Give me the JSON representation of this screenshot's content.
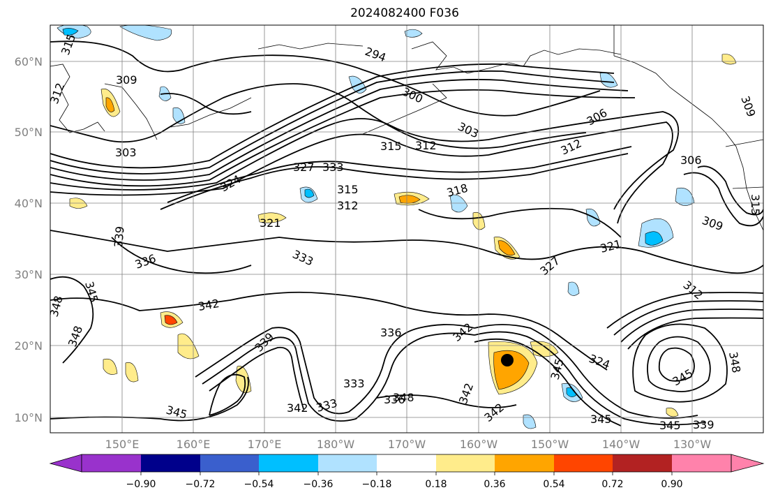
{
  "title": "2024082400 F036",
  "axes": {
    "lat_ticks": [
      "60°N",
      "50°N",
      "40°N",
      "30°N",
      "20°N",
      "10°N"
    ],
    "lon_ticks": [
      "150°E",
      "160°E",
      "170°E",
      "180°W",
      "170°W",
      "160°W",
      "150°W",
      "140°W",
      "130°W"
    ]
  },
  "colorbar": {
    "ticks": [
      "−0.90",
      "−0.72",
      "−0.54",
      "−0.36",
      "−0.18",
      "0.18",
      "0.36",
      "0.54",
      "0.72",
      "0.90"
    ],
    "colors": [
      "#9932cc",
      "#00008b",
      "#3a5fcd",
      "#00bfff",
      "#b0e2ff",
      "#ffffff",
      "#ffec8b",
      "#ffa500",
      "#ff4500",
      "#b22222",
      "#ff82ab"
    ]
  },
  "contour_labels": [
    "315",
    "309",
    "312",
    "303",
    "294",
    "300",
    "303",
    "306",
    "309",
    "315",
    "312",
    "318",
    "312",
    "321",
    "324",
    "327",
    "333",
    "315",
    "312",
    "306",
    "315",
    "309",
    "339",
    "336",
    "333",
    "327",
    "321",
    "312",
    "345",
    "348",
    "342",
    "339",
    "336",
    "333",
    "348",
    "342",
    "345",
    "348",
    "324",
    "345",
    "342",
    "339",
    "345",
    "345",
    "348",
    "333",
    "336",
    "342",
    "345",
    "342"
  ],
  "features": {
    "marker": "storm-center-dot",
    "contour_color": "#000000",
    "grid": true
  }
}
